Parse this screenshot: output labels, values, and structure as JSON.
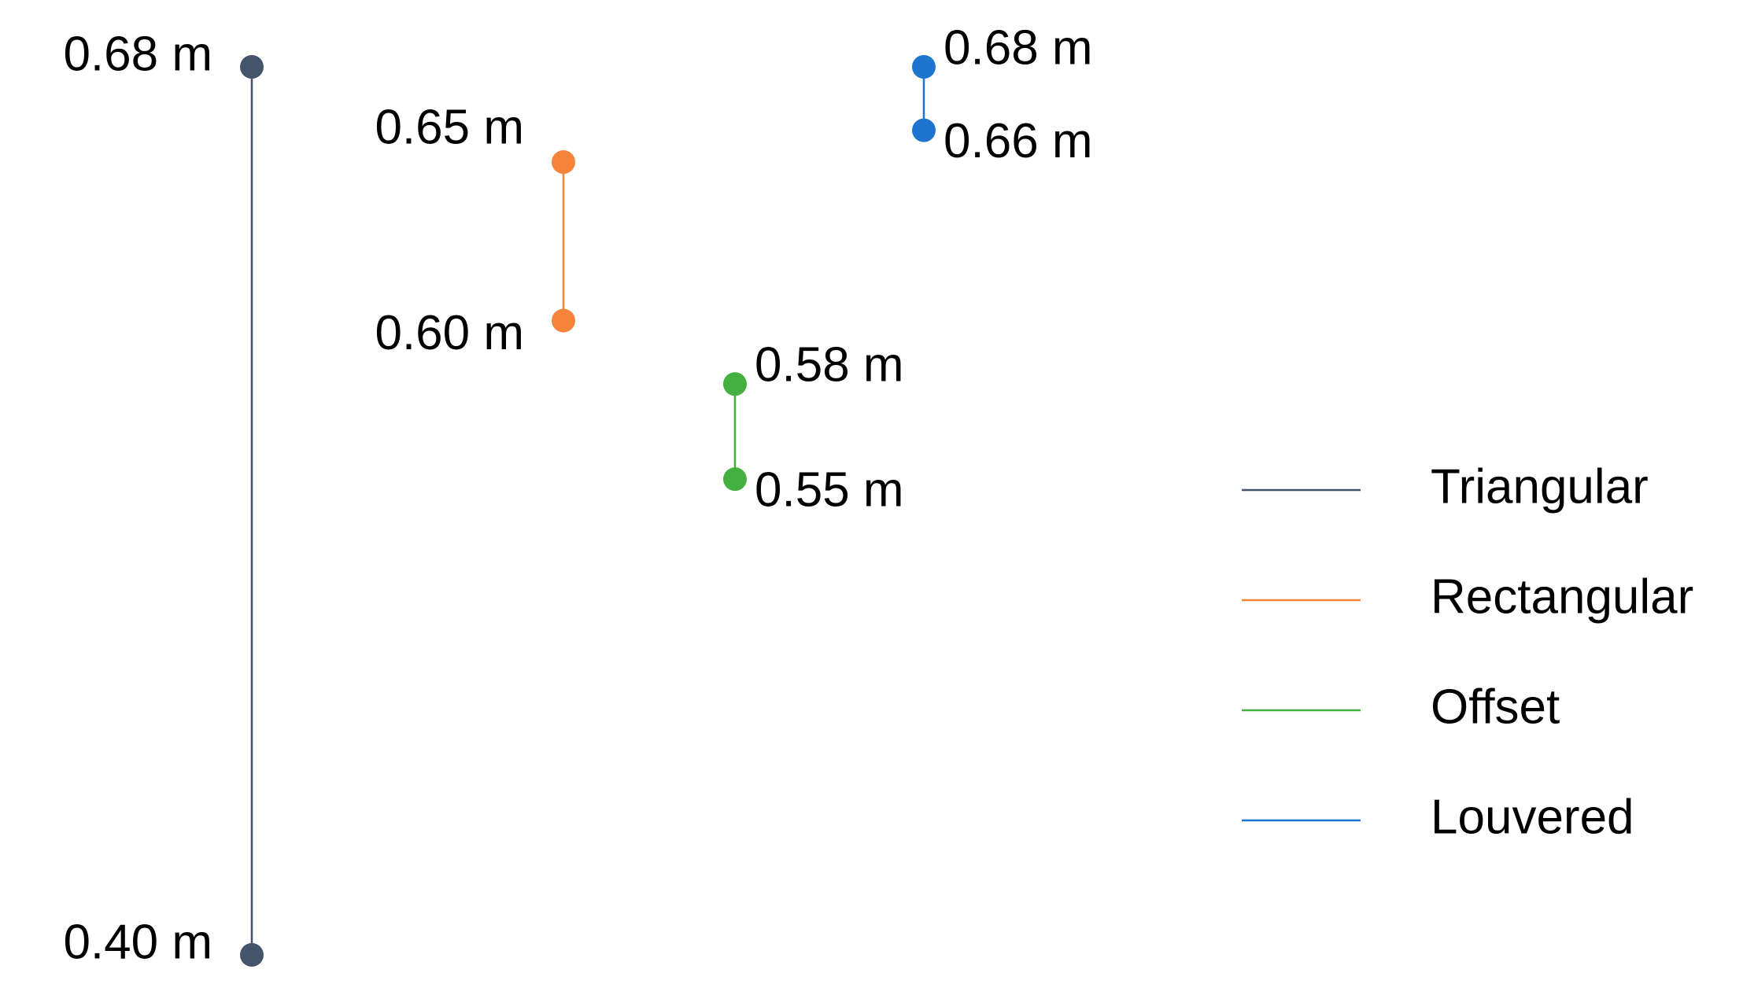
{
  "chart_data": {
    "type": "range",
    "series": [
      {
        "name": "Triangular",
        "color": "#44546a",
        "values": [
          0.4,
          0.68
        ],
        "value_labels": [
          "0.40 m",
          "0.68 m"
        ]
      },
      {
        "name": "Rectangular",
        "color": "#f5843a",
        "values": [
          0.6,
          0.65
        ],
        "value_labels": [
          "0.60 m",
          "0.65 m"
        ]
      },
      {
        "name": "Offset",
        "color": "#43b03f",
        "values": [
          0.55,
          0.58
        ],
        "value_labels": [
          "0.55 m",
          "0.58 m"
        ]
      },
      {
        "name": "Louvered",
        "color": "#1f74d0",
        "values": [
          0.66,
          0.68
        ],
        "value_labels": [
          "0.66 m",
          "0.68 m"
        ]
      }
    ]
  }
}
